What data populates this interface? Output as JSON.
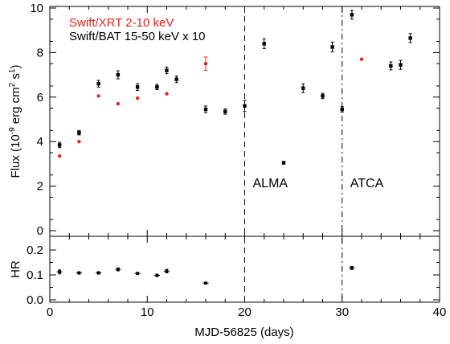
{
  "chart_data": [
    {
      "panel": "flux",
      "type": "scatter",
      "ylabel_parts": [
        "Flux (10",
        "-9",
        " erg cm",
        "2",
        " s",
        "1",
        ")"
      ],
      "ylim": [
        0,
        10
      ],
      "xlim": [
        0,
        40
      ],
      "yticks": [
        "0",
        "2",
        "4",
        "6",
        "8",
        "10"
      ],
      "legend": [
        {
          "label": "Swift/XRT 2-10 keV",
          "color": "#e8231f"
        },
        {
          "label": "Swift/BAT 15-50 keV x 10",
          "color": "#000000"
        }
      ],
      "series": [
        {
          "name": "Swift/XRT 2-10 keV",
          "color": "#e8231f",
          "points": [
            {
              "x": 1,
              "y": 3.35
            },
            {
              "x": 3,
              "y": 4.0
            },
            {
              "x": 5,
              "y": 6.05
            },
            {
              "x": 7,
              "y": 5.7
            },
            {
              "x": 9,
              "y": 5.95
            },
            {
              "x": 11,
              "y": 6.45
            },
            {
              "x": 12,
              "y": 6.15
            },
            {
              "x": 16,
              "y": 7.5,
              "err": 0.3
            },
            {
              "x": 32,
              "y": 7.7
            }
          ]
        },
        {
          "name": "Swift/BAT 15-50 keV x 10",
          "color": "#000000",
          "points": [
            {
              "x": 1,
              "y": 3.85,
              "err": 0.12
            },
            {
              "x": 3,
              "y": 4.4,
              "err": 0.1
            },
            {
              "x": 5,
              "y": 6.6,
              "err": 0.15
            },
            {
              "x": 7,
              "y": 7.0,
              "err": 0.18
            },
            {
              "x": 9,
              "y": 6.45,
              "err": 0.15
            },
            {
              "x": 11,
              "y": 6.45,
              "err": 0.12
            },
            {
              "x": 12,
              "y": 7.2,
              "err": 0.15
            },
            {
              "x": 13,
              "y": 6.8,
              "err": 0.15
            },
            {
              "x": 16,
              "y": 5.45,
              "err": 0.15
            },
            {
              "x": 18,
              "y": 5.35,
              "err": 0.12
            },
            {
              "x": 20,
              "y": 5.6,
              "err": 0.25
            },
            {
              "x": 22,
              "y": 8.4,
              "err": 0.22
            },
            {
              "x": 24,
              "y": 3.05,
              "err": 0.06
            },
            {
              "x": 26,
              "y": 6.4,
              "err": 0.2
            },
            {
              "x": 28,
              "y": 6.05,
              "err": 0.12
            },
            {
              "x": 29,
              "y": 8.25,
              "err": 0.22
            },
            {
              "x": 30,
              "y": 5.45,
              "err": 0.12
            },
            {
              "x": 31,
              "y": 9.7,
              "err": 0.2
            },
            {
              "x": 35,
              "y": 7.4,
              "err": 0.18
            },
            {
              "x": 36,
              "y": 7.45,
              "err": 0.2
            },
            {
              "x": 37,
              "y": 8.65,
              "err": 0.2
            }
          ]
        }
      ],
      "vlines": [
        {
          "x": 20,
          "style": "dashed",
          "label": "ALMA"
        },
        {
          "x": 30,
          "style": "dashdot",
          "label": "ATCA"
        }
      ]
    },
    {
      "panel": "hardness",
      "type": "scatter",
      "ylabel": "HR",
      "xlabel": "MJD-56825 (days)",
      "xlim": [
        0,
        40
      ],
      "xticks": [
        "0",
        "10",
        "20",
        "30",
        "40"
      ],
      "ylim": [
        0,
        0.25
      ],
      "yticks": [
        "0.0",
        "0.1",
        "0.2"
      ],
      "series": [
        {
          "name": "",
          "color": "#000000",
          "points": [
            {
              "x": 1,
              "y": 0.112,
              "dx": 0.3,
              "err": 0.008
            },
            {
              "x": 3,
              "y": 0.108,
              "dx": 0.3,
              "err": 0.005
            },
            {
              "x": 5,
              "y": 0.108,
              "dx": 0.3,
              "err": 0.005
            },
            {
              "x": 7,
              "y": 0.122,
              "dx": 0.3,
              "err": 0.006
            },
            {
              "x": 9,
              "y": 0.106,
              "dx": 0.3,
              "err": 0.004
            },
            {
              "x": 11,
              "y": 0.098,
              "dx": 0.3,
              "err": 0.005
            },
            {
              "x": 12,
              "y": 0.115,
              "dx": 0.3,
              "err": 0.007
            },
            {
              "x": 16,
              "y": 0.067,
              "dx": 0.3,
              "err": 0.004
            },
            {
              "x": 31,
              "y": 0.128,
              "dx": 0.3,
              "err": 0.006
            }
          ]
        }
      ]
    }
  ]
}
